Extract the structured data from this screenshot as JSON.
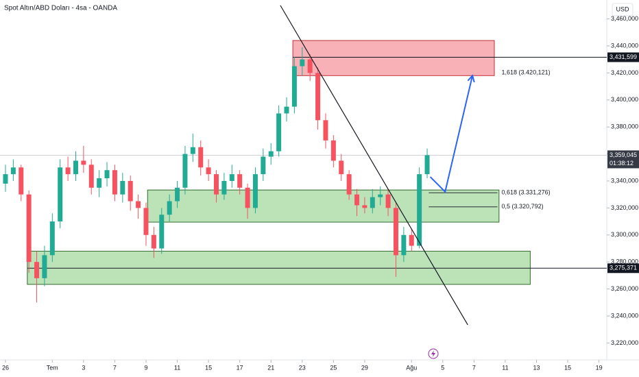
{
  "chart_data": {
    "type": "candlestick",
    "title": "Spot Altın/ABD Doları - 4sa - OANDA",
    "currency": "USD",
    "up_color": "#22ab94",
    "down_color": "#f7525f",
    "grid": false,
    "xlim": [
      -0.35,
      38.5
    ],
    "ylim": [
      3207500,
      3474000
    ],
    "xticks": [
      {
        "value": 0,
        "label": "26"
      },
      {
        "value": 3,
        "label": "Tem"
      },
      {
        "value": 5,
        "label": "3"
      },
      {
        "value": 7,
        "label": "7"
      },
      {
        "value": 9,
        "label": "9"
      },
      {
        "value": 11,
        "label": "11"
      },
      {
        "value": 13,
        "label": "15"
      },
      {
        "value": 15,
        "label": "17"
      },
      {
        "value": 17,
        "label": "21"
      },
      {
        "value": 19,
        "label": "23"
      },
      {
        "value": 21,
        "label": "25"
      },
      {
        "value": 23,
        "label": "29"
      },
      {
        "value": 26,
        "label": "Ağu"
      },
      {
        "value": 28,
        "label": "5"
      },
      {
        "value": 30,
        "label": "7"
      },
      {
        "value": 32,
        "label": "11"
      },
      {
        "value": 34,
        "label": "13"
      },
      {
        "value": 36,
        "label": "15"
      },
      {
        "value": 38,
        "label": "19"
      }
    ],
    "yticks": [
      {
        "value": 3220000,
        "label": "3,220,000"
      },
      {
        "value": 3240000,
        "label": "3,240,000"
      },
      {
        "value": 3260000,
        "label": "3,260,000"
      },
      {
        "value": 3280000,
        "label": "3,280,000"
      },
      {
        "value": 3300000,
        "label": "3,300,000"
      },
      {
        "value": 3320000,
        "label": "3,320,000"
      },
      {
        "value": 3340000,
        "label": "3,340,000"
      },
      {
        "value": 3360000,
        "label": "3,360,000"
      },
      {
        "value": 3380000,
        "label": "3,380,000"
      },
      {
        "value": 3400000,
        "label": "3,400,000"
      },
      {
        "value": 3420000,
        "label": "3,420,000"
      },
      {
        "value": 3440000,
        "label": "3,440,000"
      },
      {
        "value": 3460000,
        "label": "3,460,000"
      }
    ],
    "x": [
      0,
      0.5,
      1,
      1.5,
      2,
      2.5,
      3,
      3.5,
      4,
      4.5,
      5,
      5.5,
      6,
      6.5,
      7,
      7.5,
      8,
      8.5,
      9,
      9.5,
      10,
      10.5,
      11,
      11.5,
      12,
      12.5,
      13,
      13.5,
      14,
      14.5,
      15,
      15.5,
      16,
      16.5,
      17,
      17.5,
      18,
      18.5,
      19,
      19.5,
      20,
      20.5,
      21,
      21.5,
      22,
      22.5,
      23,
      23.5,
      24,
      24.5,
      25,
      25.5,
      26,
      26.5,
      27
    ],
    "open": [
      3338000,
      3345000,
      3350000,
      3330000,
      3280000,
      3268000,
      3285000,
      3310000,
      3350000,
      3345000,
      3355000,
      3352000,
      3335000,
      3342000,
      3348000,
      3330000,
      3340000,
      3325000,
      3320000,
      3300000,
      3290000,
      3315000,
      3325000,
      3335000,
      3360000,
      3365000,
      3350000,
      3345000,
      3330000,
      3340000,
      3345000,
      3335000,
      3320000,
      3345000,
      3358000,
      3362000,
      3390000,
      3395000,
      3425000,
      3430000,
      3420000,
      3385000,
      3370000,
      3355000,
      3345000,
      3330000,
      3322000,
      3320000,
      3328000,
      3330000,
      3320000,
      3285000,
      3300000,
      3292000,
      3345000
    ],
    "high": [
      3352000,
      3356000,
      3352000,
      3333000,
      3288000,
      3292000,
      3316000,
      3356000,
      3358000,
      3362000,
      3366000,
      3356000,
      3348000,
      3354000,
      3352000,
      3346000,
      3344000,
      3330000,
      3324000,
      3306000,
      3320000,
      3330000,
      3340000,
      3366000,
      3375000,
      3370000,
      3356000,
      3348000,
      3346000,
      3352000,
      3348000,
      3338000,
      3350000,
      3364000,
      3368000,
      3396000,
      3402000,
      3432000,
      3439000,
      3434000,
      3424000,
      3390000,
      3374000,
      3360000,
      3348000,
      3334000,
      3328000,
      3334000,
      3336000,
      3334000,
      3324000,
      3306000,
      3304000,
      3350000,
      3364000
    ],
    "low": [
      3332000,
      3340000,
      3325000,
      3272000,
      3250000,
      3262000,
      3280000,
      3305000,
      3340000,
      3340000,
      3346000,
      3330000,
      3328000,
      3336000,
      3325000,
      3324000,
      3318000,
      3312000,
      3292000,
      3283000,
      3286000,
      3310000,
      3320000,
      3330000,
      3354000,
      3344000,
      3340000,
      3324000,
      3326000,
      3335000,
      3330000,
      3312000,
      3316000,
      3340000,
      3352000,
      3358000,
      3384000,
      3390000,
      3418000,
      3414000,
      3378000,
      3364000,
      3350000,
      3340000,
      3326000,
      3314000,
      3316000,
      3316000,
      3322000,
      3314000,
      3269000,
      3280000,
      3288000,
      3290000,
      3342000
    ],
    "close": [
      3345000,
      3350000,
      3330000,
      3280000,
      3268000,
      3285000,
      3310000,
      3350000,
      3345000,
      3355000,
      3352000,
      3335000,
      3342000,
      3348000,
      3330000,
      3340000,
      3325000,
      3320000,
      3300000,
      3290000,
      3315000,
      3325000,
      3335000,
      3360000,
      3365000,
      3350000,
      3345000,
      3330000,
      3340000,
      3345000,
      3335000,
      3320000,
      3345000,
      3358000,
      3362000,
      3390000,
      3395000,
      3425000,
      3430000,
      3420000,
      3385000,
      3370000,
      3355000,
      3345000,
      3330000,
      3322000,
      3320000,
      3328000,
      3330000,
      3320000,
      3285000,
      3300000,
      3292000,
      3345000,
      3359045
    ],
    "zones": [
      {
        "color": "#f7a8ae",
        "border": "#c0303b",
        "x": [
          18.4,
          31.3
        ],
        "top": 3444000,
        "bottom": 3418000
      },
      {
        "color": "#b5dfb0",
        "border": "#2e6b2a",
        "x": [
          9.1,
          31.6
        ],
        "top": 3333300,
        "bottom": 3309500
      },
      {
        "color": "#b5dfb0",
        "border": "#2e6b2a",
        "x": [
          1.4,
          33.6
        ],
        "top": 3288000,
        "bottom": 3263400
      }
    ],
    "levels": [
      {
        "value": 3431599,
        "label": "3,431,599",
        "x": 18.4
      },
      {
        "value": 3275371,
        "label": "3,275,371",
        "x": 1.4
      }
    ],
    "last_price": {
      "value": 3359045,
      "label": "3,359,045",
      "countdown": "01:38:12"
    },
    "fib_levels": [
      {
        "value": 3420121,
        "label": "1,618 (3.420,121)"
      },
      {
        "value": 3331276,
        "label": "0,618 (3.331,276)",
        "x": [
          27.1,
          31.5
        ]
      },
      {
        "value": 3320792,
        "label": "0,5 (3.320,792)",
        "x": [
          27.1,
          31.5
        ]
      }
    ],
    "trend_line": {
      "x": [
        17.6,
        29.6
      ],
      "y": [
        3470000,
        3233400
      ]
    },
    "projection": {
      "color": "#2962ff",
      "x": [
        27.2,
        28.15,
        29.9
      ],
      "y": [
        3343000,
        3332000,
        3418000
      ]
    }
  }
}
